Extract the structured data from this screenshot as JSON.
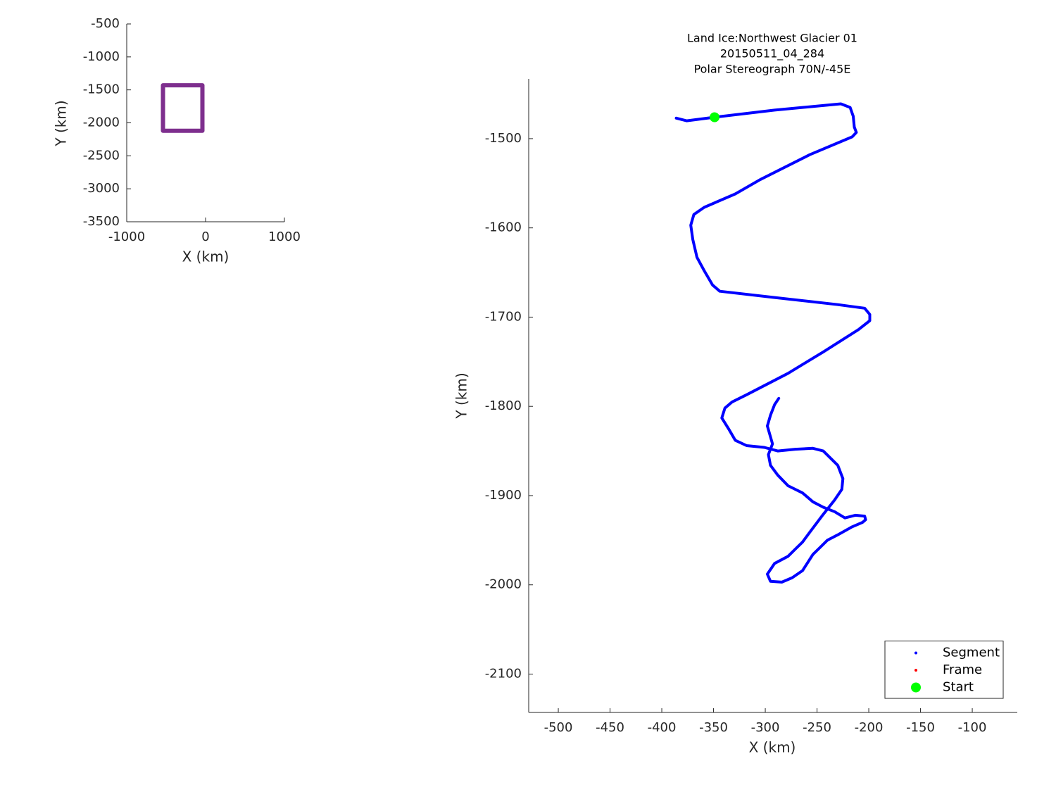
{
  "chart_data": [
    {
      "type": "line",
      "xlabel": "X (km)",
      "ylabel": "Y (km)",
      "xlim": [
        -1000,
        1000
      ],
      "ylim": [
        -3500,
        -500
      ],
      "xticks": [
        -1000,
        0,
        1000
      ],
      "yticks": [
        -3500,
        -3000,
        -2500,
        -2000,
        -1500,
        -1000,
        -500
      ],
      "grid": false,
      "series": [
        {
          "color": "#7e2f8e",
          "mode": "line",
          "width": 6,
          "x": [
            -540,
            -40,
            -40,
            -540,
            -540
          ],
          "values": [
            -1430,
            -1430,
            -2120,
            -2120,
            -1430
          ]
        }
      ]
    },
    {
      "type": "line",
      "title": [
        "Land Ice:Northwest Glacier 01",
        "20150511_04_284",
        "Polar Stereograph 70N/-45E"
      ],
      "xlabel": "X (km)",
      "ylabel": "Y (km)",
      "xlim": [
        -528.6,
        -56.5
      ],
      "ylim": [
        -2143,
        -1433
      ],
      "xticks": [
        -500,
        -450,
        -400,
        -350,
        -300,
        -250,
        -200,
        -150,
        -100
      ],
      "yticks": [
        -2100,
        -2000,
        -1900,
        -1800,
        -1700,
        -1600,
        -1500
      ],
      "grid": false,
      "legend": "lower right",
      "series": [
        {
          "name": "Segment",
          "color": "#0000ff",
          "mode": "line",
          "width": 4,
          "x": [
            -386,
            -376,
            -349,
            -291,
            -227,
            -218,
            -215,
            -214,
            -212,
            -216,
            -257,
            -305,
            -329,
            -359,
            -369,
            -372,
            -370,
            -366,
            -359,
            -351,
            -344,
            -291,
            -230,
            -204,
            -199,
            -199,
            -210,
            -244,
            -278,
            -318,
            -332,
            -339,
            -342,
            -335,
            -329,
            -318,
            -301,
            -288,
            -271,
            -254,
            -244,
            -230,
            -225,
            -226,
            -233,
            -244,
            -257,
            -264,
            -271,
            -278,
            -291,
            -298,
            -295,
            -284,
            -274,
            -264,
            -254,
            -247,
            -240,
            -230,
            -216,
            -206,
            -203,
            -204,
            -213,
            -223,
            -233,
            -244,
            -254,
            -264,
            -278,
            -288,
            -295,
            -297,
            -293,
            -296,
            -298,
            -295,
            -291,
            -287
          ],
          "values": [
            -1477,
            -1480,
            -1476,
            -1468,
            -1461,
            -1465,
            -1475,
            -1487,
            -1493,
            -1498,
            -1518,
            -1546,
            -1562,
            -1577,
            -1585,
            -1597,
            -1613,
            -1633,
            -1648,
            -1664,
            -1671,
            -1678,
            -1686,
            -1690,
            -1697,
            -1704,
            -1714,
            -1739,
            -1763,
            -1787,
            -1795,
            -1802,
            -1813,
            -1826,
            -1838,
            -1844,
            -1846,
            -1850,
            -1848,
            -1847,
            -1850,
            -1866,
            -1881,
            -1893,
            -1905,
            -1921,
            -1941,
            -1952,
            -1960,
            -1968,
            -1976,
            -1988,
            -1996,
            -1997,
            -1992,
            -1984,
            -1966,
            -1958,
            -1950,
            -1944,
            -1935,
            -1930,
            -1927,
            -1923,
            -1922,
            -1925,
            -1918,
            -1913,
            -1907,
            -1897,
            -1889,
            -1877,
            -1866,
            -1854,
            -1842,
            -1830,
            -1822,
            -1810,
            -1798,
            -1791
          ]
        },
        {
          "name": "Frame",
          "color": "#ff0000",
          "mode": "line",
          "width": 4,
          "x": [],
          "values": []
        },
        {
          "name": "Start",
          "color": "#00ff00",
          "mode": "marker",
          "x": [
            -349
          ],
          "values": [
            -1476
          ]
        }
      ]
    }
  ]
}
